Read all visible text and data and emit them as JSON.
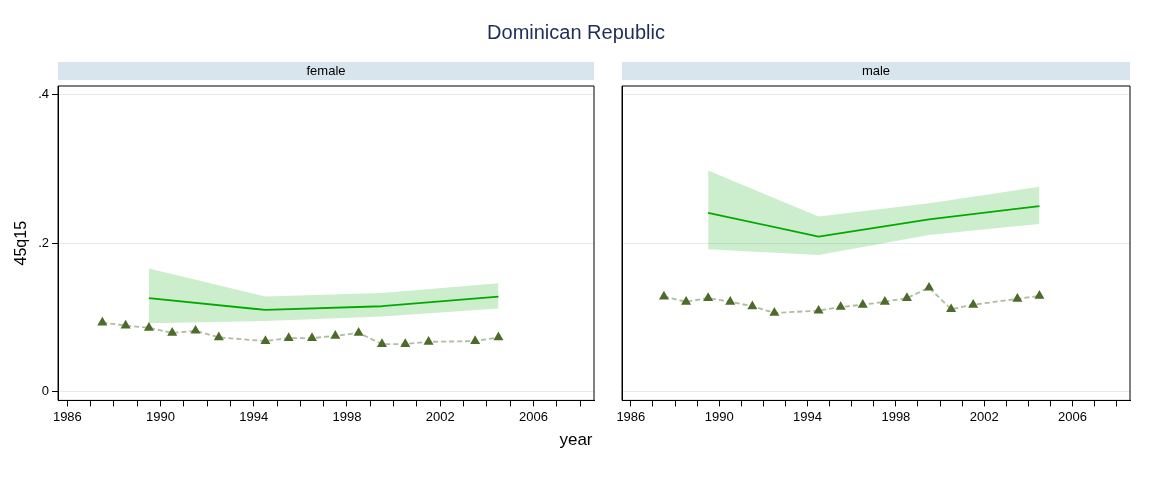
{
  "chart_data": [
    {
      "type": "line",
      "title": "female",
      "ylabel": "45q15",
      "xlabel": "year",
      "annotations": [
        "Dominican Republic"
      ],
      "xlim": [
        1985.6,
        2008.6
      ],
      "ylim": [
        -0.012,
        0.412
      ],
      "xticks": [
        {
          "value": 1986,
          "label": "1986"
        },
        {
          "value": 1987,
          "label": null
        },
        {
          "value": 1988,
          "label": null
        },
        {
          "value": 1989,
          "label": null
        },
        {
          "value": 1990,
          "label": "1990"
        },
        {
          "value": 1991,
          "label": null
        },
        {
          "value": 1992,
          "label": null
        },
        {
          "value": 1993,
          "label": null
        },
        {
          "value": 1994,
          "label": "1994"
        },
        {
          "value": 1995,
          "label": null
        },
        {
          "value": 1996,
          "label": null
        },
        {
          "value": 1997,
          "label": null
        },
        {
          "value": 1998,
          "label": "1998"
        },
        {
          "value": 1999,
          "label": null
        },
        {
          "value": 2000,
          "label": null
        },
        {
          "value": 2001,
          "label": null
        },
        {
          "value": 2002,
          "label": "2002"
        },
        {
          "value": 2003,
          "label": null
        },
        {
          "value": 2004,
          "label": null
        },
        {
          "value": 2005,
          "label": null
        },
        {
          "value": 2006,
          "label": "2006"
        },
        {
          "value": 2007,
          "label": null
        },
        {
          "value": 2008,
          "label": null
        }
      ],
      "yticks": [
        {
          "value": 0,
          "label": "0"
        },
        {
          "value": 0.2,
          "label": ".2"
        },
        {
          "value": 0.4,
          "label": ".4"
        }
      ],
      "grid": "y",
      "series": [
        {
          "type": "line",
          "color": "#00aa00",
          "marker": "none",
          "line_style": "solid",
          "x": [
            1989.5,
            1994.5,
            1999.5,
            2004.5
          ],
          "values": [
            0.126,
            0.11,
            0.115,
            0.128
          ],
          "lower": [
            0.092,
            0.095,
            0.101,
            0.112
          ],
          "upper": [
            0.166,
            0.128,
            0.133,
            0.146
          ]
        },
        {
          "type": "line",
          "color": "#4d6b2a",
          "marker": "triangle",
          "line_style": "dashed",
          "x": [
            1987.5,
            1988.5,
            1989.5,
            1990.5,
            1991.5,
            1992.5,
            1994.5,
            1995.5,
            1996.5,
            1997.5,
            1998.5,
            1999.5,
            2000.5,
            2001.5,
            2003.5,
            2004.5
          ],
          "values": [
            0.093,
            0.089,
            0.086,
            0.079,
            0.082,
            0.073,
            0.068,
            0.072,
            0.072,
            0.075,
            0.079,
            0.064,
            0.064,
            0.067,
            0.068,
            0.073
          ]
        }
      ]
    },
    {
      "type": "line",
      "title": "male",
      "tick_labels": "x",
      "xlim": [
        1985.6,
        2008.6
      ],
      "ylim": [
        -0.012,
        0.412
      ],
      "xticks": [
        {
          "value": 1986,
          "label": "1986"
        },
        {
          "value": 1987,
          "label": null
        },
        {
          "value": 1988,
          "label": null
        },
        {
          "value": 1989,
          "label": null
        },
        {
          "value": 1990,
          "label": "1990"
        },
        {
          "value": 1991,
          "label": null
        },
        {
          "value": 1992,
          "label": null
        },
        {
          "value": 1993,
          "label": null
        },
        {
          "value": 1994,
          "label": "1994"
        },
        {
          "value": 1995,
          "label": null
        },
        {
          "value": 1996,
          "label": null
        },
        {
          "value": 1997,
          "label": null
        },
        {
          "value": 1998,
          "label": "1998"
        },
        {
          "value": 1999,
          "label": null
        },
        {
          "value": 2000,
          "label": null
        },
        {
          "value": 2001,
          "label": null
        },
        {
          "value": 2002,
          "label": "2002"
        },
        {
          "value": 2003,
          "label": null
        },
        {
          "value": 2004,
          "label": null
        },
        {
          "value": 2005,
          "label": null
        },
        {
          "value": 2006,
          "label": "2006"
        },
        {
          "value": 2007,
          "label": null
        },
        {
          "value": 2008,
          "label": null
        }
      ],
      "yticks": [
        0,
        0.2,
        0.4
      ],
      "grid": "y",
      "series": [
        {
          "type": "line",
          "color": "#00aa00",
          "marker": "none",
          "line_style": "solid",
          "x": [
            1989.5,
            1994.5,
            1999.5,
            2004.5
          ],
          "values": [
            0.241,
            0.209,
            0.232,
            0.25
          ],
          "lower": [
            0.192,
            0.184,
            0.211,
            0.226
          ],
          "upper": [
            0.298,
            0.236,
            0.254,
            0.276
          ]
        },
        {
          "type": "line",
          "color": "#4d6b2a",
          "marker": "triangle",
          "line_style": "dashed",
          "x": [
            1987.5,
            1988.5,
            1989.5,
            1990.5,
            1991.5,
            1992.5,
            1994.5,
            1995.5,
            1996.5,
            1997.5,
            1998.5,
            1999.5,
            2000.5,
            2001.5,
            2003.5,
            2004.5
          ],
          "values": [
            0.128,
            0.121,
            0.126,
            0.121,
            0.115,
            0.106,
            0.109,
            0.114,
            0.117,
            0.121,
            0.126,
            0.14,
            0.111,
            0.117,
            0.125,
            0.129
          ]
        }
      ]
    }
  ]
}
